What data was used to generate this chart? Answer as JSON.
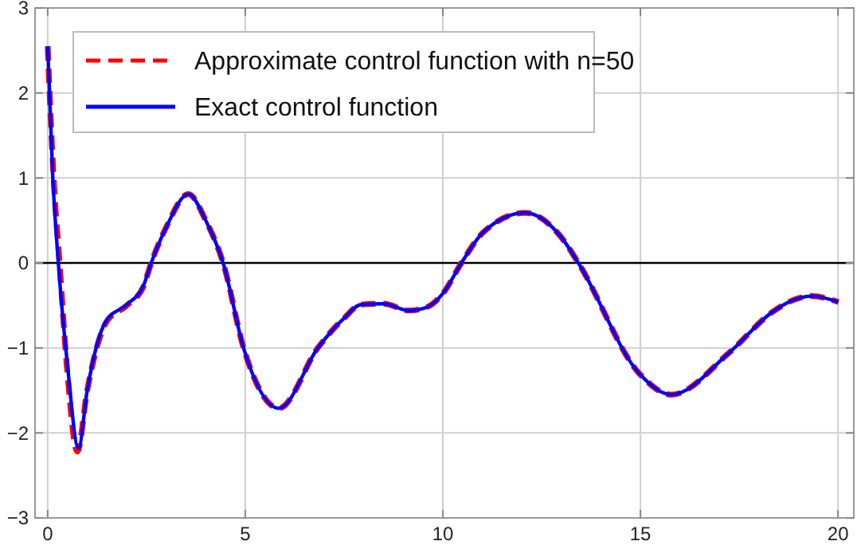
{
  "chart_data": {
    "type": "line",
    "xlim": [
      -0.32,
      20.4
    ],
    "ylim": [
      -3,
      3
    ],
    "xticks": [
      0,
      5,
      10,
      15,
      20
    ],
    "yticks": [
      -3,
      -2,
      -1,
      0,
      1,
      2,
      3
    ],
    "grid": true,
    "legend": "top left",
    "ref_lines": [
      {
        "axis": "y",
        "value": 0,
        "color": "#000000"
      }
    ],
    "series": [
      {
        "name": "Approximate control function with n=50",
        "color": "#ff0000",
        "line_style": "dashed",
        "x": [
          0,
          0.15,
          0.3,
          0.5,
          0.75,
          1.0,
          1.48,
          2.0,
          2.42,
          2.62,
          3.0,
          3.56,
          4.0,
          4.44,
          4.97,
          5.85,
          6.85,
          7.5,
          7.93,
          8.5,
          9.14,
          9.6,
          10,
          10.47,
          11,
          12.08,
          13,
          13.43,
          14.97,
          15.78,
          17.26,
          18.33,
          18.8,
          19.34,
          20.01
        ],
        "values": [
          2.55,
          1.0,
          0,
          -1.3,
          -2.22,
          -1.5,
          -0.7,
          -0.5,
          -0.28,
          0,
          0.42,
          0.81,
          0.5,
          0,
          -1.02,
          -1.71,
          -0.99,
          -0.65,
          -0.49,
          -0.48,
          -0.56,
          -0.52,
          -0.36,
          0,
          0.35,
          0.59,
          0.3,
          0,
          -1.3,
          -1.55,
          -1.05,
          -0.58,
          -0.45,
          -0.39,
          -0.46
        ]
      },
      {
        "name": "Exact control function",
        "color": "#0000ff",
        "line_style": "solid",
        "x": [
          0,
          0.13,
          0.27,
          0.5,
          0.78,
          1.0,
          1.48,
          2.0,
          2.42,
          2.62,
          3.0,
          3.56,
          4.0,
          4.44,
          4.97,
          5.85,
          6.85,
          7.5,
          7.93,
          8.5,
          9.14,
          9.6,
          10,
          10.47,
          11,
          12.08,
          13,
          13.43,
          14.97,
          15.78,
          17.26,
          18.33,
          18.8,
          19.34,
          20.01
        ],
        "values": [
          2.55,
          1.0,
          0,
          -1.2,
          -2.18,
          -1.5,
          -0.68,
          -0.49,
          -0.27,
          0,
          0.42,
          0.81,
          0.5,
          0,
          -1.02,
          -1.71,
          -0.99,
          -0.65,
          -0.49,
          -0.48,
          -0.56,
          -0.52,
          -0.36,
          0,
          0.35,
          0.59,
          0.3,
          0,
          -1.3,
          -1.55,
          -1.05,
          -0.58,
          -0.45,
          -0.39,
          -0.46
        ]
      }
    ]
  }
}
